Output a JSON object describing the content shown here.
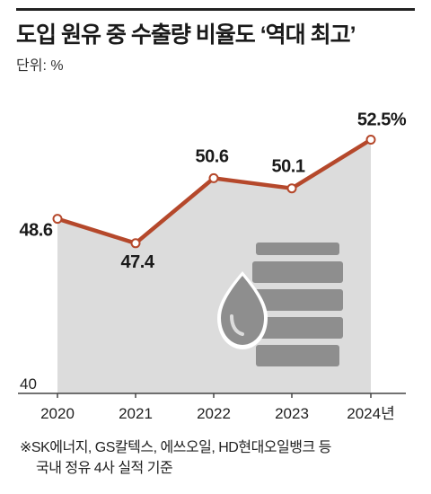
{
  "header": {
    "title": "도입 원유 중 수출량 비율도 ‘역대 최고’",
    "unit": "단위: %"
  },
  "footnote": {
    "line1": "※SK에너지, GS칼텍스, 에쓰오일, HD현대오일뱅크 등",
    "line2": "국내 정유 4사 실적 기준"
  },
  "colors": {
    "line": "#b5482b",
    "area": "#dcdcdc",
    "icon": "#8e8e8e",
    "axis": "#444444"
  },
  "icon": "oil-barrel-with-drop-icon",
  "chart_data": {
    "type": "area",
    "title": "도입 원유 중 수출량 비율도 ‘역대 최고’",
    "ylabel": "단위: %",
    "categories": [
      "2020",
      "2021",
      "2022",
      "2023",
      "2024년"
    ],
    "values": [
      48.6,
      47.4,
      50.6,
      50.1,
      52.5
    ],
    "data_labels": [
      "48.6",
      "47.4",
      "50.6",
      "50.1",
      "52.5%"
    ],
    "ylim": [
      40,
      53.9
    ],
    "y_tick_labels": [
      "40"
    ],
    "grid": false,
    "legend": "none"
  }
}
